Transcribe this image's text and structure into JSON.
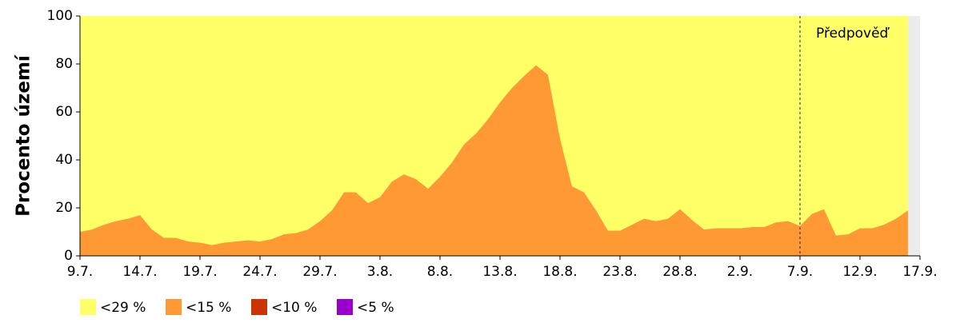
{
  "chart_data": {
    "type": "stacked_area",
    "ylabel": "Procento území",
    "annotation": {
      "text": "Předpověď",
      "at": "7.9."
    },
    "categories": [
      "9.7.",
      null,
      null,
      null,
      null,
      "14.7.",
      null,
      null,
      null,
      null,
      "19.7.",
      null,
      null,
      null,
      null,
      "24.7.",
      null,
      null,
      null,
      null,
      "29.7.",
      null,
      null,
      null,
      null,
      "3.8.",
      null,
      null,
      null,
      null,
      "8.8.",
      null,
      null,
      null,
      null,
      "13.8.",
      null,
      null,
      null,
      null,
      "18.8.",
      null,
      null,
      null,
      null,
      "23.8.",
      null,
      null,
      null,
      null,
      "28.8.",
      null,
      null,
      null,
      null,
      "2.9.",
      null,
      null,
      null,
      null,
      "7.9.",
      null,
      null,
      null,
      null,
      "12.9.",
      null,
      null,
      null,
      null,
      "17.9."
    ],
    "series": [
      {
        "name": "<5 %",
        "color": "#9900cc",
        "values": [
          0,
          0,
          0,
          0,
          0,
          0,
          0,
          0,
          0,
          0,
          0,
          0,
          0,
          0,
          0,
          0,
          0,
          0,
          0,
          0,
          0,
          0,
          0,
          0,
          0,
          0,
          0,
          0,
          0,
          0,
          0,
          0,
          0,
          0,
          0,
          0,
          0,
          0,
          0,
          0,
          0,
          0,
          0,
          0,
          0,
          0,
          0,
          0,
          0,
          0,
          0,
          0,
          0,
          0,
          0,
          0,
          0,
          0,
          0,
          0,
          0,
          0,
          0,
          0,
          0,
          0,
          0,
          0,
          0,
          0,
          null
        ]
      },
      {
        "name": "<10 %",
        "color": "#cc3300",
        "values": [
          0,
          0,
          0,
          0,
          0,
          0,
          0,
          0,
          0,
          0,
          0,
          0,
          0,
          0,
          0,
          0,
          0,
          0,
          0,
          0,
          0,
          0,
          0,
          0,
          0,
          0,
          0,
          0,
          0,
          0,
          0,
          0,
          0,
          0,
          0,
          0,
          0,
          0,
          0,
          0,
          0,
          0,
          0,
          0,
          0,
          0,
          0,
          0,
          0,
          0,
          0,
          0,
          0,
          0,
          0,
          0,
          0,
          0,
          0,
          0,
          0,
          0,
          0,
          0,
          0,
          0,
          0,
          0,
          0,
          0,
          null
        ]
      },
      {
        "name": "<15 %",
        "color": "#ff9933",
        "values": [
          10,
          11,
          13,
          14.5,
          15.5,
          17,
          11,
          7.5,
          7.5,
          6,
          5.5,
          4.5,
          5.5,
          6,
          6.5,
          6,
          7,
          9,
          9.5,
          11,
          14.5,
          19,
          26.5,
          26.5,
          22,
          24.5,
          31,
          34,
          32,
          28,
          33,
          39,
          46.5,
          51,
          57,
          64,
          70,
          75,
          79.5,
          75.5,
          49,
          29,
          26.5,
          19,
          10.5,
          10.5,
          13,
          15.5,
          14.5,
          15.5,
          19.5,
          15,
          11,
          11.5,
          11.5,
          11.5,
          12,
          12,
          14,
          14.5,
          12.5,
          17.5,
          19.5,
          8.5,
          9,
          11.5,
          11.5,
          13,
          15.5,
          19,
          null
        ]
      },
      {
        "name": "<29 %",
        "color": "#ffff66",
        "values": [
          90,
          89,
          87,
          85.5,
          84.5,
          83,
          89,
          92.5,
          92.5,
          94,
          94.5,
          95.5,
          94.5,
          94,
          93.5,
          94,
          93,
          91,
          90.5,
          89,
          85.5,
          81,
          73.5,
          73.5,
          78,
          75.5,
          69,
          66,
          68,
          72,
          67,
          61,
          53.5,
          49,
          43,
          36,
          30,
          25,
          20.5,
          24.5,
          51,
          71,
          73.5,
          81,
          89.5,
          89.5,
          87,
          84.5,
          85.5,
          84.5,
          80.5,
          85,
          89,
          88.5,
          88.5,
          88.5,
          88,
          88,
          86,
          85.5,
          87.5,
          82.5,
          80.5,
          91.5,
          91,
          88.5,
          88.5,
          87,
          84.5,
          81,
          null
        ]
      }
    ],
    "ylim": [
      0,
      100
    ],
    "yticks": [
      0,
      20,
      40,
      60,
      80,
      100
    ]
  }
}
